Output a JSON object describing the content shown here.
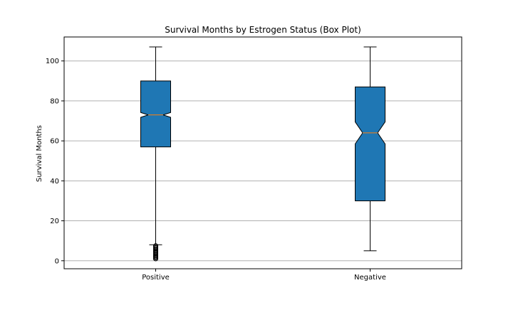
{
  "chart_data": {
    "type": "box",
    "title": "Survival Months by Estrogen Status (Box Plot)",
    "xlabel": "",
    "ylabel": "Survival Months",
    "ylim": [
      -4,
      112
    ],
    "yticks": [
      0,
      20,
      40,
      60,
      80,
      100
    ],
    "grid": "horizontal",
    "notched": true,
    "categories": [
      "Positive",
      "Negative"
    ],
    "boxes": [
      {
        "category": "Positive",
        "whisker_low": 8,
        "q1": 57,
        "median": 73,
        "q3": 90,
        "whisker_high": 107,
        "notch_low": 71.8,
        "notch_high": 74.2,
        "outliers": [
          1,
          1.5,
          2,
          2.5,
          3,
          3.5,
          4,
          4.5,
          5,
          5.5,
          6,
          6.5,
          7,
          7.5
        ]
      },
      {
        "category": "Negative",
        "whisker_low": 5,
        "q1": 30,
        "median": 64,
        "q3": 87,
        "whisker_high": 107,
        "notch_low": 58.5,
        "notch_high": 69.5,
        "outliers": []
      }
    ],
    "colors": {
      "box_fill": "#1f77b4",
      "median": "#ff7f0e",
      "grid": "#b0b0b0",
      "line": "#000000"
    }
  }
}
